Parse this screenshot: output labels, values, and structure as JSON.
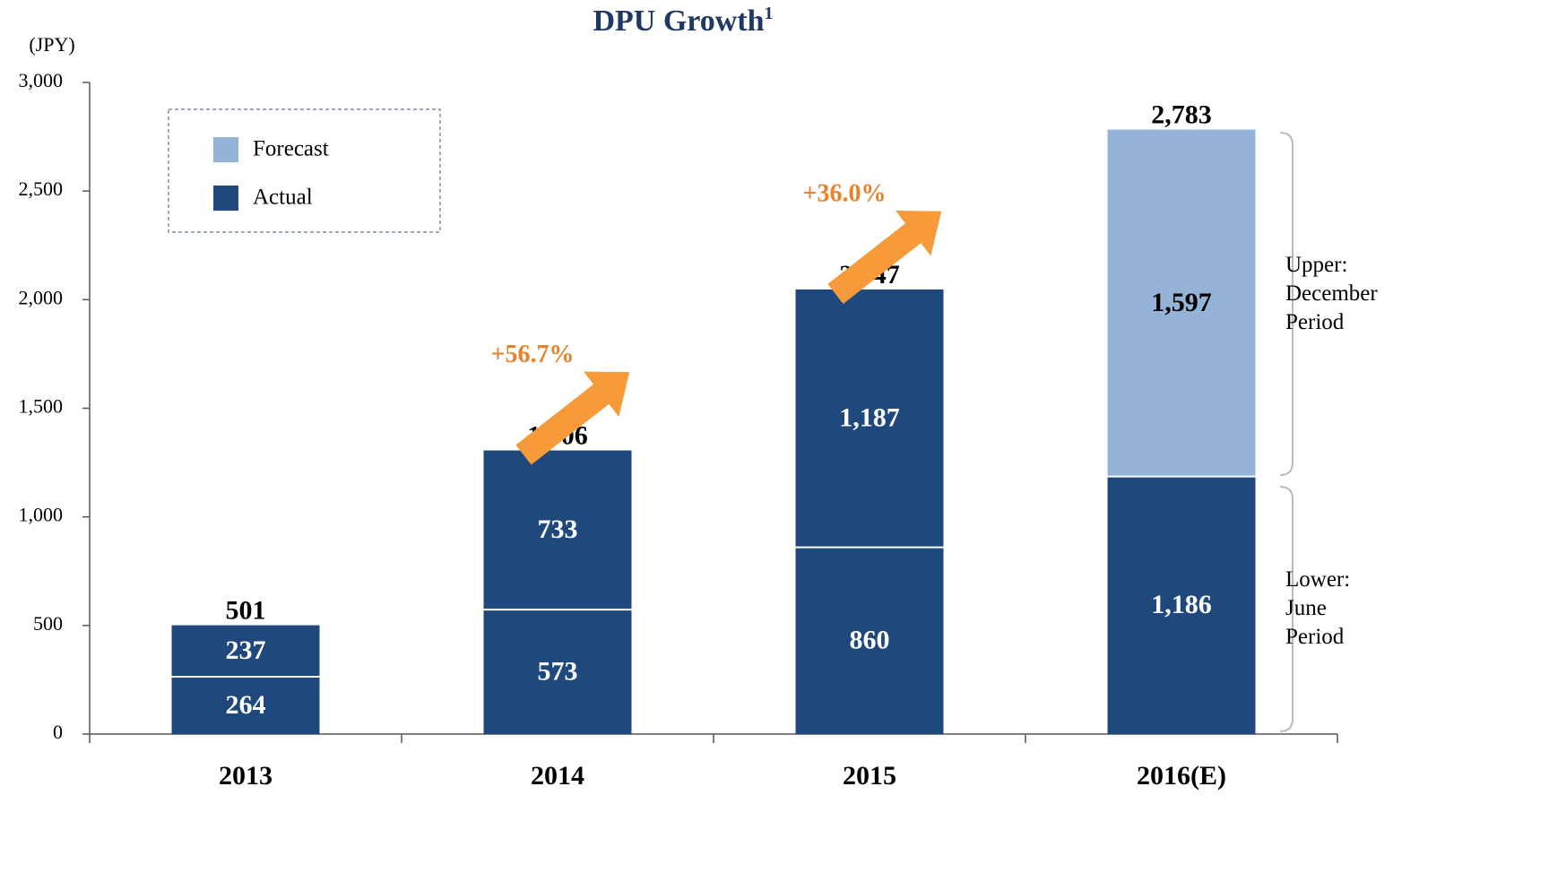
{
  "chart_data": {
    "type": "stacked_bar",
    "title": "DPU Growth",
    "title_note": "1",
    "y_label": "(JPY)",
    "categories": [
      "2013",
      "2014",
      "2015",
      "2016(E)"
    ],
    "series": [
      {
        "values": [
          264,
          573,
          860,
          1186
        ],
        "value_labels": [
          "264",
          "573",
          "860",
          "1,186"
        ],
        "forecast": [
          false,
          false,
          false,
          false
        ]
      },
      {
        "values": [
          237,
          733,
          1187,
          1597
        ],
        "value_labels": [
          "237",
          "733",
          "1,187",
          "1,597"
        ],
        "forecast": [
          false,
          false,
          false,
          true
        ]
      }
    ],
    "totals": [
      501,
      1306,
      2047,
      2783
    ],
    "total_labels": [
      "501",
      "1,306",
      "2,047",
      "2,783"
    ],
    "legend": [
      {
        "name": "Forecast",
        "color": "#95b3d7"
      },
      {
        "name": "Actual",
        "color": "#1f497d"
      }
    ],
    "growth": [
      "+56.7%",
      "+36.0%"
    ],
    "upper_note": [
      "Upper:",
      "December",
      "Period"
    ],
    "lower_note": [
      "Lower:",
      "June",
      "Period"
    ],
    "ylim": [
      0,
      3000
    ],
    "yticks": [
      0,
      500,
      {
        "value": 1000,
        "label": "1,000"
      },
      {
        "value": 1500,
        "label": "1,500"
      },
      {
        "value": 2000,
        "label": "2,000"
      },
      {
        "value": 2500,
        "label": "2,500"
      },
      {
        "value": 3000,
        "label": "3,000"
      }
    ]
  }
}
